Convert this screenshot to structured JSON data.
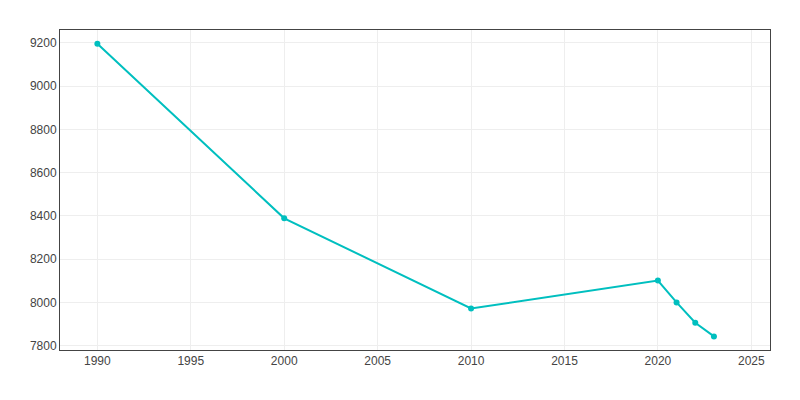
{
  "chart_data": {
    "type": "line",
    "x": [
      1990,
      2000,
      2010,
      2020,
      2021,
      2022,
      2023
    ],
    "values": [
      9196,
      8389,
      7972,
      8101,
      8000,
      7906,
      7843
    ],
    "color": "#00BFBF",
    "marker": "circle",
    "line_style": "solid",
    "xlim": [
      1988,
      2026
    ],
    "ylim": [
      7780,
      9260
    ],
    "xticks": [
      1990,
      1995,
      2000,
      2005,
      2010,
      2015,
      2020,
      2025
    ],
    "yticks": [
      7800,
      8000,
      8200,
      8400,
      8600,
      8800,
      9000,
      9200
    ],
    "grid": true
  }
}
